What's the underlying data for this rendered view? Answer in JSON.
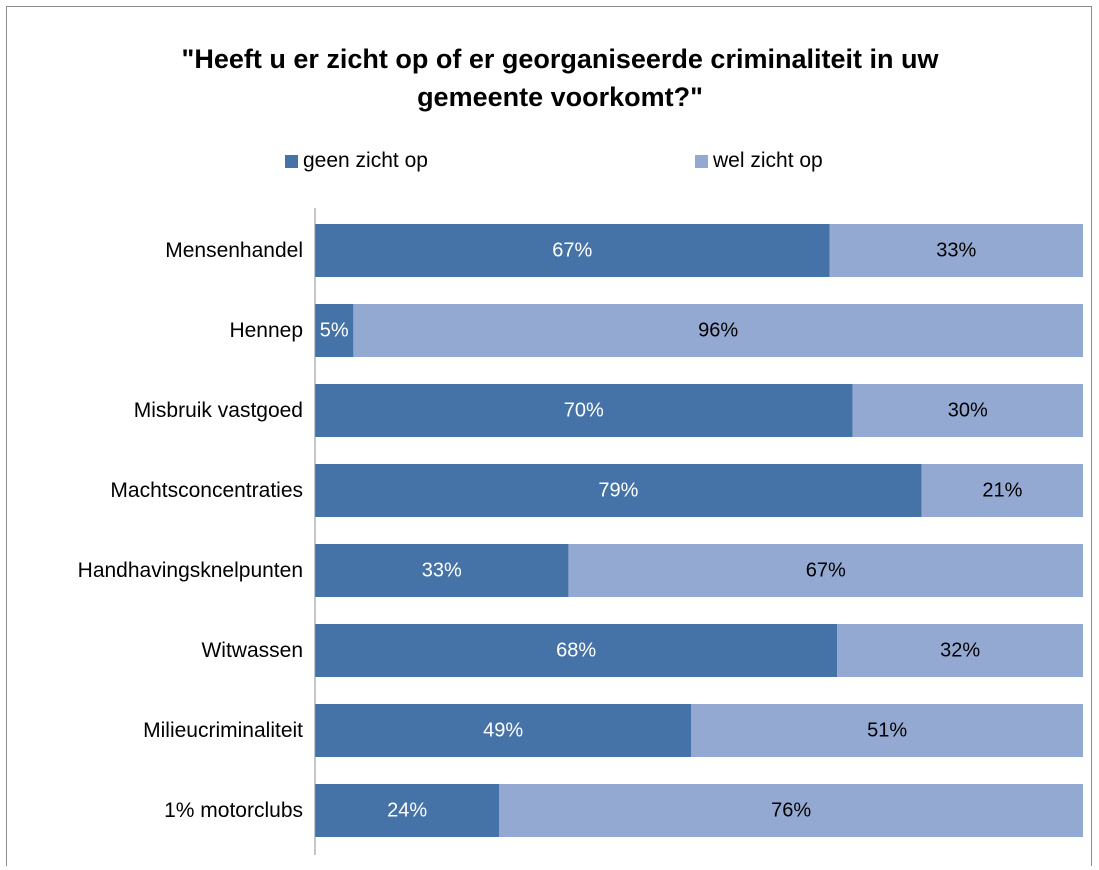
{
  "chart_data": {
    "type": "bar",
    "stacked": true,
    "orientation": "horizontal",
    "title": "\"Heeft u er zicht op of er georganiseerde criminaliteit in uw gemeente voorkomt?\"",
    "title_lines": [
      "\"Heeft u er zicht op of er georganiseerde criminaliteit in uw",
      "gemeente voorkomt?\""
    ],
    "categories": [
      "Mensenhandel",
      "Hennep",
      "Misbruik vastgoed",
      "Machtsconcentraties",
      "Handhavingsknelpunten",
      "Witwassen",
      "Milieucriminaliteit",
      "1% motorclubs"
    ],
    "series": [
      {
        "name": "geen zicht op",
        "color": "#4572a7",
        "values": [
          67,
          5,
          70,
          79,
          33,
          68,
          49,
          24
        ],
        "labels": [
          "67%",
          "5%",
          "70%",
          "79%",
          "33%",
          "68%",
          "49%",
          "24%"
        ],
        "label_color": "#ffffff"
      },
      {
        "name": "wel zicht op",
        "color": "#94a9d1",
        "values": [
          33,
          96,
          30,
          21,
          67,
          32,
          51,
          76
        ],
        "labels": [
          "33%",
          "96%",
          "30%",
          "21%",
          "67%",
          "32%",
          "51%",
          "76%"
        ],
        "label_color": "#000000"
      }
    ],
    "xlim": [
      0,
      100
    ],
    "legend_position": "top",
    "grid": false
  }
}
